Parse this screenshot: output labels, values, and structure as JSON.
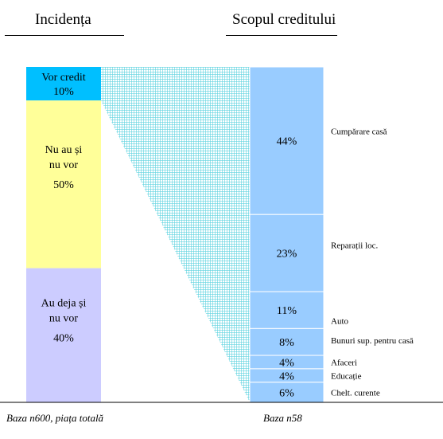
{
  "headers": {
    "left": "Incidența",
    "right": "Scopul creditului"
  },
  "footers": {
    "left": "Baza n600, piața totală",
    "right": "Baza n58"
  },
  "colors": {
    "vor_credit": "#00bfff",
    "nu_au": "#ffff99",
    "au_deja": "#ccccff",
    "scop": "#99ccff",
    "border": "#7fb0e0",
    "hatch": "#5fd3e0"
  },
  "chart_data": [
    {
      "type": "bar",
      "subtype": "stacked-100",
      "title": "Incidența",
      "note": "Baza n600, piața totală",
      "categories": [
        "Vor credit",
        "Nu au și nu vor",
        "Au deja și nu vor"
      ],
      "values": [
        10,
        50,
        40
      ],
      "labels": [
        "10%",
        "50%",
        "40%"
      ],
      "unit": "%"
    },
    {
      "type": "bar",
      "subtype": "stacked-100",
      "title": "Scopul creditului",
      "note": "Baza n58",
      "categories": [
        "Cumpărare casă",
        "Reparații loc.",
        "Auto",
        "Bunuri sup. pentru casă",
        "Afaceri",
        "Educație",
        "Chelt. curente"
      ],
      "values": [
        44,
        23,
        11,
        8,
        4,
        4,
        6
      ],
      "labels": [
        "44%",
        "23%",
        "11%",
        "8%",
        "4%",
        "4%",
        "6%"
      ],
      "unit": "%"
    }
  ]
}
